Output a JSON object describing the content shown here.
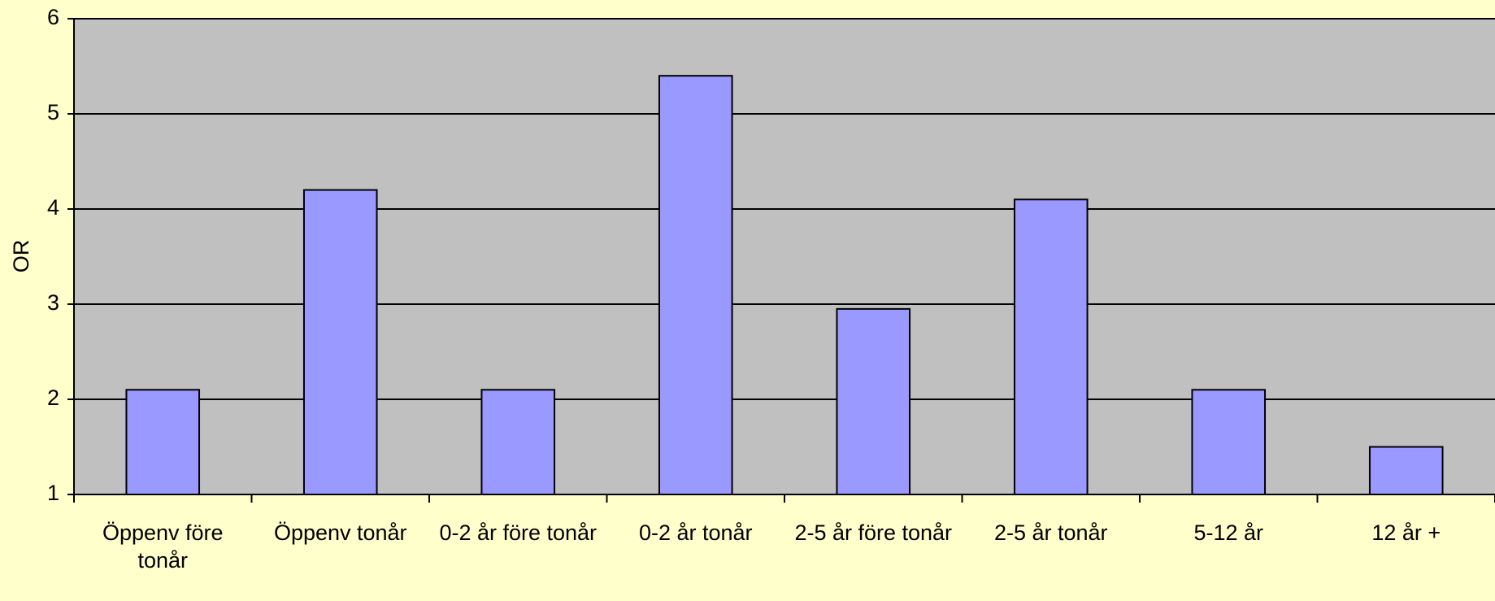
{
  "chart_data": {
    "type": "bar",
    "y_label": "OR",
    "categories": [
      "Öppenv före tonår",
      "Öppenv tonår",
      "0-2 år före tonår",
      "0-2 år tonår",
      "2-5 år före tonår",
      "2-5 år tonår",
      "5-12 år",
      "12 år +"
    ],
    "values": [
      2.1,
      4.2,
      2.1,
      5.4,
      2.95,
      4.1,
      2.1,
      1.5
    ],
    "color": "#9999ff",
    "ylim": [
      1,
      6
    ],
    "yticks": [
      1,
      2,
      3,
      4,
      5,
      6
    ],
    "grid": true
  }
}
